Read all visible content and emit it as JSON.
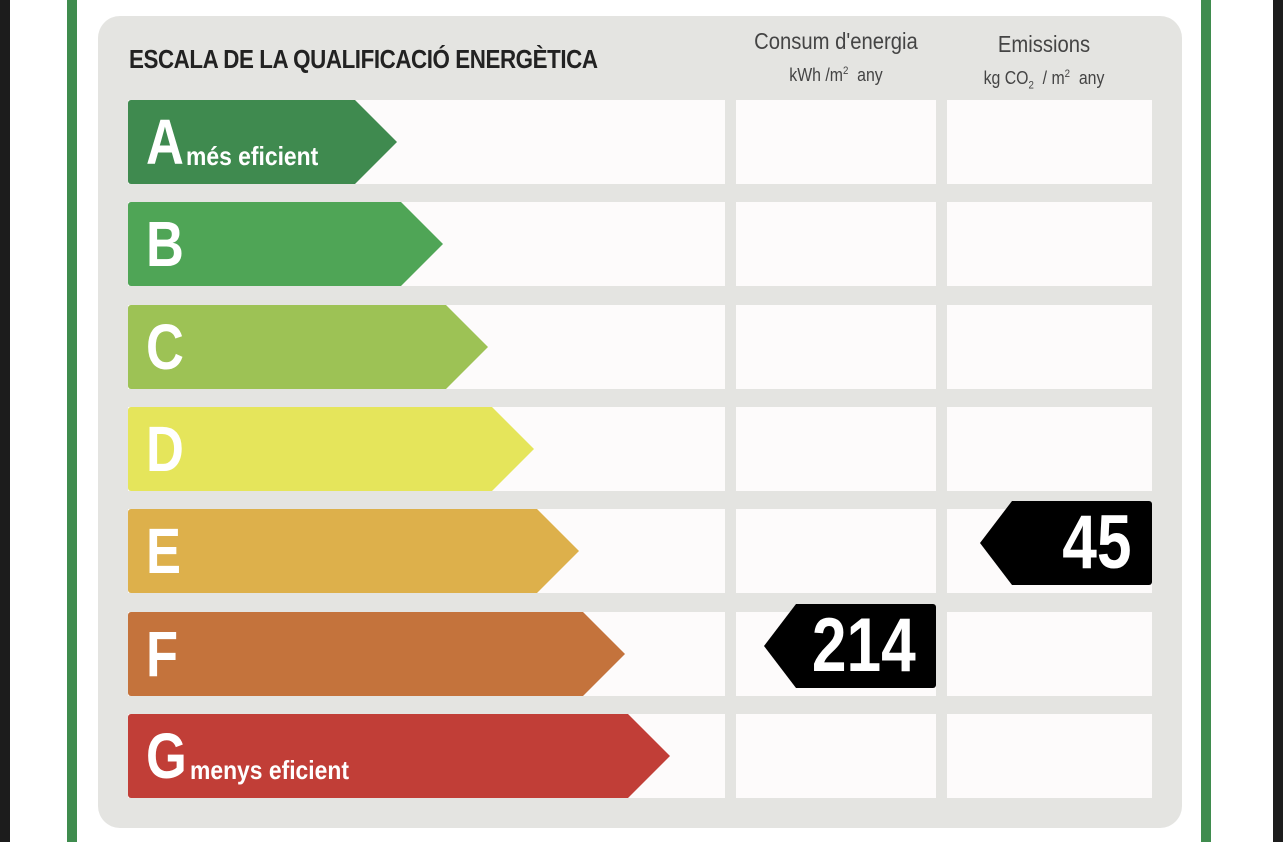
{
  "title": "ESCALA DE LA QUALIFICACIÓ ENERGÈTICA",
  "columns": {
    "energy": {
      "heading": "Consum d'energia",
      "unit_prefix": "kWh /m",
      "unit_exp": "2",
      "unit_suffix": "any"
    },
    "emissions": {
      "heading": "Emissions",
      "unit_prefix": "kg CO",
      "unit_sub": "2",
      "unit_mid": "/ m",
      "unit_exp": "2",
      "unit_suffix": "any"
    }
  },
  "ratings": [
    {
      "letter": "A",
      "label": "més eficient",
      "color": "#3f8a4f"
    },
    {
      "letter": "B",
      "label": "",
      "color": "#4fa556"
    },
    {
      "letter": "C",
      "label": "",
      "color": "#9dc255"
    },
    {
      "letter": "D",
      "label": "",
      "color": "#e5e55b"
    },
    {
      "letter": "E",
      "label": "",
      "color": "#ddb04b"
    },
    {
      "letter": "F",
      "label": "",
      "color": "#c4733c"
    },
    {
      "letter": "G",
      "label": "menys eficient",
      "color": "#c13e37"
    }
  ],
  "energy_value": {
    "value": "214",
    "rating": "F"
  },
  "emissions_value": {
    "value": "45",
    "rating": "E"
  }
}
